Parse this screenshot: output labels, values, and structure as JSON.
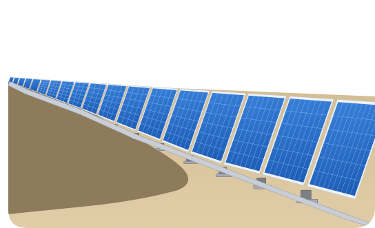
{
  "scene": {
    "subject": "solar-panel-array",
    "colors": {
      "background": "#ffffff",
      "ground_light": "#d9c49b",
      "ground_dark": "#8e7b5c",
      "panel_blue": "#2a6fc9",
      "panel_blue_dark": "#1c4f9a",
      "panel_grid": "#9cc7ff",
      "frame": "#eef2f8",
      "rail": "#c8cdd6",
      "support": "#7b7f86"
    }
  }
}
